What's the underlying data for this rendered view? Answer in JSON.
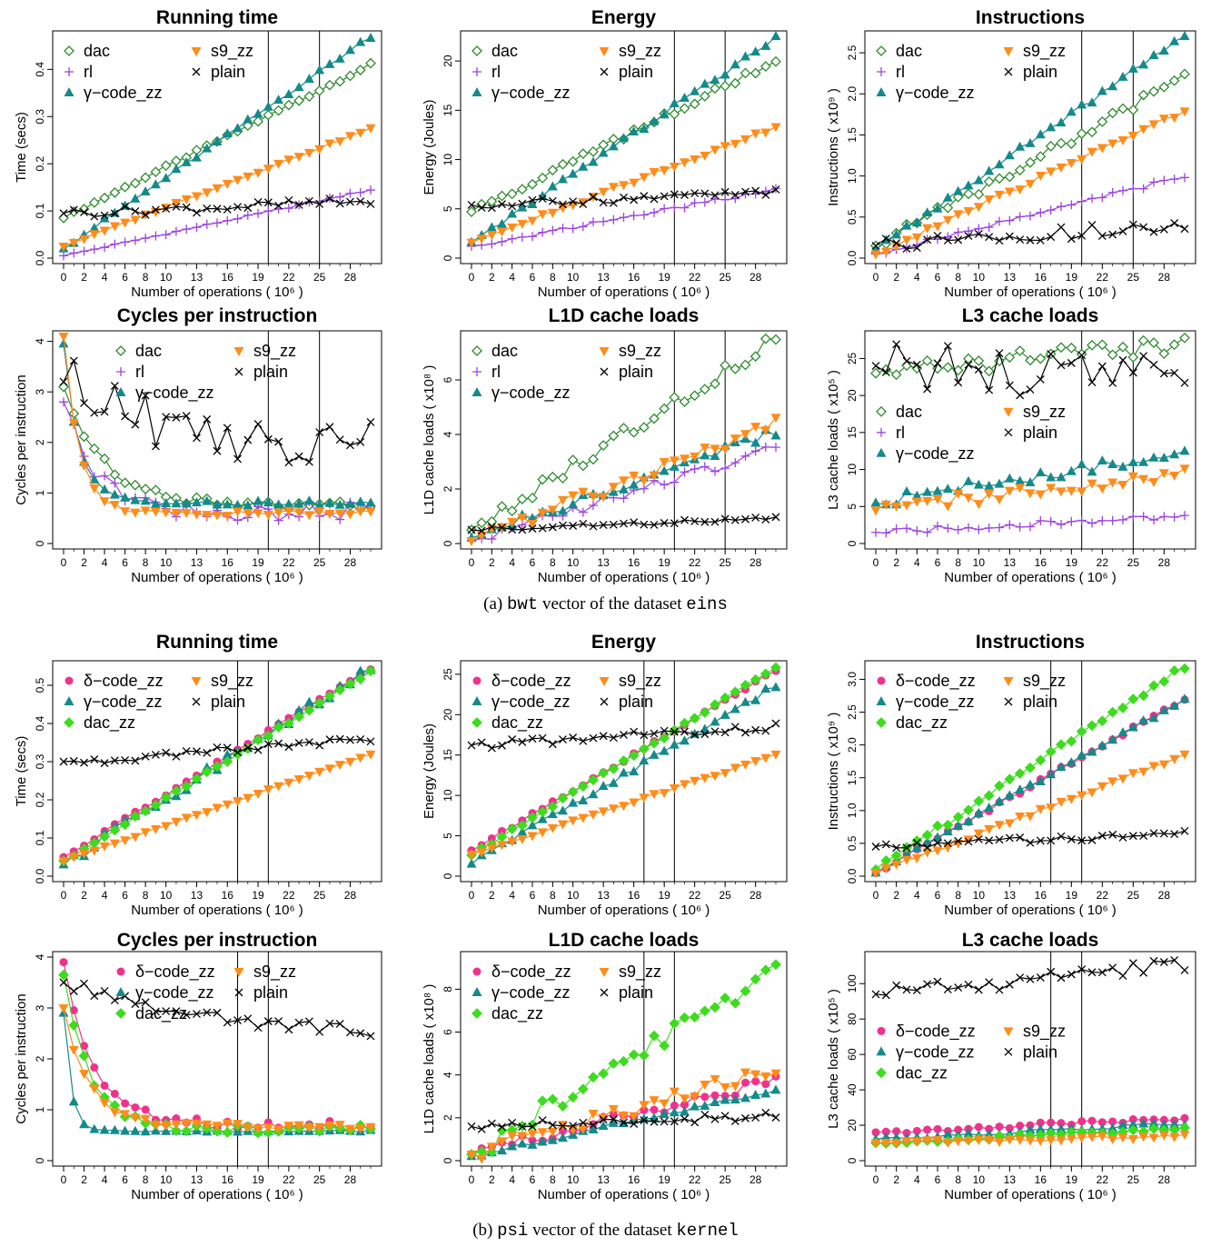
{
  "figure": {
    "caption_a": {
      "prefix": "(a)",
      "vector": "bwt",
      "middle": "vector of the dataset",
      "dataset": "eins"
    },
    "caption_b": {
      "prefix": "(b)",
      "vector": "psi",
      "middle": "vector of the dataset",
      "dataset": "kernel"
    }
  },
  "series_styles": {
    "dac": {
      "color": "#2e8b2e",
      "marker": "diamond-open"
    },
    "rl": {
      "color": "#9d44e0",
      "marker": "plus"
    },
    "γ−code_zz": {
      "color": "#158a8a",
      "marker": "triangle-up"
    },
    "s9_zz": {
      "color": "#ff8c1a",
      "marker": "triangle-down"
    },
    "plain": {
      "color": "#000000",
      "marker": "x"
    },
    "δ−code_zz": {
      "color": "#f0328c",
      "marker": "circle"
    },
    "dac_zz": {
      "color": "#3ddc1e",
      "marker": "diamond"
    }
  },
  "chart_data": [
    {
      "panel": "a",
      "type": "line",
      "title": "Running time",
      "xlabel": "Number of operations ( 10⁶ )",
      "ylabel": "Time (secs)",
      "xticks": [
        0,
        2,
        4,
        6,
        8,
        10,
        13,
        16,
        19,
        22,
        25,
        28
      ],
      "ylim": [
        0,
        0.47
      ],
      "yticks": [
        "0.0",
        "0.1",
        "0.2",
        "0.3",
        "0.4"
      ],
      "ytick_values": [
        0,
        0.1,
        0.2,
        0.3,
        0.4
      ],
      "vlines": [
        20,
        25
      ],
      "legend": {
        "position": "top-left",
        "col2": "center",
        "order": [
          "dac",
          "s9_zz",
          "rl",
          "plain",
          "γ−code_zz"
        ]
      },
      "series": [
        {
          "name": "dac",
          "y0": 0.085,
          "y1": 0.41,
          "noise": 0.003
        },
        {
          "name": "rl",
          "y0": 0.005,
          "y1": 0.145,
          "noise": 0.002
        },
        {
          "name": "γ−code_zz",
          "y0": 0.02,
          "y1": 0.47,
          "noise": 0.004
        },
        {
          "name": "s9_zz",
          "y0": 0.025,
          "y1": 0.275,
          "noise": 0.002
        },
        {
          "name": "plain",
          "y0": 0.095,
          "y1": 0.12,
          "noise": 0.01
        }
      ]
    },
    {
      "panel": "a",
      "type": "line",
      "title": "Energy",
      "xlabel": "Number of operations ( 10⁶ )",
      "ylabel": "Energy (Joules)",
      "xticks": [
        0,
        2,
        4,
        6,
        8,
        10,
        13,
        16,
        19,
        22,
        25,
        28
      ],
      "ylim": [
        0,
        22.5
      ],
      "yticks": [
        "0",
        "5",
        "10",
        "15",
        "20"
      ],
      "ytick_values": [
        0,
        5,
        10,
        15,
        20
      ],
      "vlines": [
        20,
        25
      ],
      "legend": {
        "position": "top-left",
        "col2": "center",
        "order": [
          "dac",
          "s9_zz",
          "rl",
          "plain",
          "γ−code_zz"
        ]
      },
      "series": [
        {
          "name": "dac",
          "y0": 4.7,
          "y1": 20,
          "noise": 0.3
        },
        {
          "name": "rl",
          "y0": 1.2,
          "y1": 7.0,
          "noise": 0.2
        },
        {
          "name": "γ−code_zz",
          "y0": 1.6,
          "y1": 22.3,
          "noise": 0.3
        },
        {
          "name": "s9_zz",
          "y0": 1.6,
          "y1": 13.3,
          "noise": 0.2
        },
        {
          "name": "plain",
          "y0": 5.4,
          "y1": 6.6,
          "noise": 0.4
        }
      ]
    },
    {
      "panel": "a",
      "type": "line",
      "title": "Instructions",
      "xlabel": "Number of operations ( 10⁶ )",
      "ylabel": "Instructions ( x10⁹ )",
      "xticks": [
        0,
        2,
        4,
        6,
        8,
        10,
        13,
        16,
        19,
        22,
        25,
        28
      ],
      "ylim": [
        0,
        2.7
      ],
      "yticks": [
        "0.0",
        "0.5",
        "1.0",
        "1.5",
        "2.0",
        "2.5"
      ],
      "ytick_values": [
        0,
        0.5,
        1,
        1.5,
        2,
        2.5
      ],
      "vlines": [
        20,
        25
      ],
      "legend": {
        "position": "top-left",
        "col2": "center",
        "order": [
          "dac",
          "s9_zz",
          "rl",
          "plain",
          "γ−code_zz"
        ]
      },
      "series": [
        {
          "name": "dac",
          "y0": 0.15,
          "y1": 2.2,
          "noise": 0.06
        },
        {
          "name": "rl",
          "y0": 0.05,
          "y1": 1.0,
          "noise": 0.03
        },
        {
          "name": "γ−code_zz",
          "y0": 0.1,
          "y1": 2.7,
          "noise": 0.04
        },
        {
          "name": "s9_zz",
          "y0": 0.05,
          "y1": 1.8,
          "noise": 0.03
        },
        {
          "name": "plain",
          "y0": 0.15,
          "y1": 0.4,
          "noise": 0.08
        }
      ]
    },
    {
      "panel": "a",
      "type": "line",
      "title": "Cycles per instruction",
      "xlabel": "Number of operations ( 10⁶ )",
      "ylabel": "Cycles per instruction",
      "xticks": [
        0,
        2,
        4,
        6,
        8,
        10,
        13,
        16,
        19,
        22,
        25,
        28
      ],
      "ylim": [
        0,
        4.1
      ],
      "yticks": [
        "0",
        "1",
        "2",
        "3",
        "4"
      ],
      "ytick_values": [
        0,
        1,
        2,
        3,
        4
      ],
      "vlines": [
        20,
        25
      ],
      "legend": {
        "position": "top-center",
        "col2": "right",
        "order": [
          "dac",
          "s9_zz",
          "rl",
          "plain",
          "γ−code_zz"
        ]
      },
      "series": [
        {
          "name": "dac",
          "y0": 3.1,
          "y1": 0.75,
          "noise": 0.08,
          "decay": 4
        },
        {
          "name": "rl",
          "y0": 2.8,
          "y1": 0.65,
          "noise": 0.2,
          "decay": 3
        },
        {
          "name": "γ−code_zz",
          "y0": 3.95,
          "y1": 0.8,
          "noise": 0.05,
          "decay": 1.5
        },
        {
          "name": "s9_zz",
          "y0": 4.1,
          "y1": 0.6,
          "noise": 0.05,
          "decay": 1.5
        },
        {
          "name": "plain",
          "y0": 3.2,
          "y1": 1.8,
          "noise": 0.55,
          "decay": 10
        }
      ]
    },
    {
      "panel": "a",
      "type": "line",
      "title": "L1D cache loads",
      "xlabel": "Number of operations ( 10⁶ )",
      "ylabel": "L1D cache loads ( x10⁸ )",
      "xticks": [
        0,
        2,
        4,
        6,
        8,
        10,
        13,
        16,
        19,
        22,
        25,
        28
      ],
      "ylim": [
        0,
        7.6
      ],
      "yticks": [
        "0",
        "2",
        "4",
        "6"
      ],
      "ytick_values": [
        0,
        2,
        4,
        6
      ],
      "vlines": [
        20,
        25
      ],
      "legend": {
        "position": "top-left",
        "col2": "center",
        "order": [
          "dac",
          "s9_zz",
          "rl",
          "plain",
          "γ−code_zz"
        ]
      },
      "series": [
        {
          "name": "dac",
          "y0": 0.5,
          "y1": 7.5,
          "noise": 0.25
        },
        {
          "name": "rl",
          "y0": 0.1,
          "y1": 3.5,
          "noise": 0.2
        },
        {
          "name": "γ−code_zz",
          "y0": 0.2,
          "y1": 4.1,
          "noise": 0.2
        },
        {
          "name": "s9_zz",
          "y0": 0.1,
          "y1": 4.4,
          "noise": 0.25
        },
        {
          "name": "plain",
          "y0": 0.5,
          "y1": 0.9,
          "noise": 0.1
        }
      ]
    },
    {
      "panel": "a",
      "type": "line",
      "title": "L3 cache loads",
      "xlabel": "Number of operations ( 10⁶ )",
      "ylabel": "L3 cache loads ( x10⁵ )",
      "xticks": [
        0,
        2,
        4,
        6,
        8,
        10,
        13,
        16,
        19,
        22,
        25,
        28
      ],
      "ylim": [
        0,
        28
      ],
      "yticks": [
        "0",
        "5",
        "10",
        "15",
        "20",
        "25"
      ],
      "ytick_values": [
        0,
        5,
        10,
        15,
        20,
        25
      ],
      "vlines": [
        20,
        25
      ],
      "legend": {
        "position": "middle-left",
        "col2": "center",
        "order": [
          "dac",
          "s9_zz",
          "rl",
          "plain",
          "γ−code_zz"
        ]
      },
      "series": [
        {
          "name": "dac",
          "y0": 23,
          "y1": 27,
          "noise": 1.2
        },
        {
          "name": "rl",
          "y0": 1.5,
          "y1": 3.8,
          "noise": 0.4
        },
        {
          "name": "γ−code_zz",
          "y0": 5.5,
          "y1": 12.5,
          "noise": 0.8
        },
        {
          "name": "s9_zz",
          "y0": 4.5,
          "y1": 9.7,
          "noise": 0.9
        },
        {
          "name": "plain",
          "y0": 24,
          "y1": 22,
          "noise": 3.2
        }
      ]
    },
    {
      "panel": "b",
      "type": "line",
      "title": "Running time",
      "xlabel": "Number of operations ( 10⁶ )",
      "ylabel": "Time (secs)",
      "xticks": [
        0,
        2,
        4,
        6,
        8,
        10,
        13,
        16,
        19,
        22,
        25,
        28
      ],
      "ylim": [
        0,
        0.55
      ],
      "yticks": [
        "0.0",
        "0.1",
        "0.2",
        "0.3",
        "0.4",
        "0.5"
      ],
      "ytick_values": [
        0,
        0.1,
        0.2,
        0.3,
        0.4,
        0.5
      ],
      "vlines": [
        17,
        20
      ],
      "legend": {
        "position": "top-left",
        "col2": "center",
        "order": [
          "δ−code_zz",
          "s9_zz",
          "γ−code_zz",
          "plain",
          "dac_zz"
        ]
      },
      "series": [
        {
          "name": "δ−code_zz",
          "y0": 0.05,
          "y1": 0.545,
          "noise": 0.004
        },
        {
          "name": "γ−code_zz",
          "y0": 0.03,
          "y1": 0.545,
          "noise": 0.015
        },
        {
          "name": "dac_zz",
          "y0": 0.04,
          "y1": 0.535,
          "noise": 0.004
        },
        {
          "name": "s9_zz",
          "y0": 0.04,
          "y1": 0.32,
          "noise": 0.002
        },
        {
          "name": "plain",
          "y0": 0.3,
          "y1": 0.355,
          "noise": 0.012
        }
      ]
    },
    {
      "panel": "b",
      "type": "line",
      "title": "Energy",
      "xlabel": "Number of operations ( 10⁶ )",
      "ylabel": "Energy (Joules)",
      "xticks": [
        0,
        2,
        4,
        6,
        8,
        10,
        13,
        16,
        19,
        22,
        25,
        28
      ],
      "ylim": [
        0,
        26
      ],
      "yticks": [
        "0",
        "5",
        "10",
        "15",
        "20",
        "25"
      ],
      "ytick_values": [
        0,
        5,
        10,
        15,
        20,
        25
      ],
      "vlines": [
        17,
        20
      ],
      "legend": {
        "position": "top-left",
        "col2": "center",
        "order": [
          "δ−code_zz",
          "s9_zz",
          "γ−code_zz",
          "plain",
          "dac_zz"
        ]
      },
      "series": [
        {
          "name": "δ−code_zz",
          "y0": 3.2,
          "y1": 25.4,
          "noise": 0.2
        },
        {
          "name": "γ−code_zz",
          "y0": 1.5,
          "y1": 23.6,
          "noise": 0.4
        },
        {
          "name": "dac_zz",
          "y0": 2.6,
          "y1": 25.8,
          "noise": 0.2
        },
        {
          "name": "s9_zz",
          "y0": 2.7,
          "y1": 15.0,
          "noise": 0.15
        },
        {
          "name": "plain",
          "y0": 16.2,
          "y1": 18.5,
          "noise": 0.5
        }
      ]
    },
    {
      "panel": "b",
      "type": "line",
      "title": "Instructions",
      "xlabel": "Number of operations ( 10⁶ )",
      "ylabel": "Instructions ( x10⁹ )",
      "xticks": [
        0,
        2,
        4,
        6,
        8,
        10,
        13,
        16,
        19,
        22,
        25,
        28
      ],
      "ylim": [
        0,
        3.2
      ],
      "yticks": [
        "0.0",
        "0.5",
        "1.0",
        "1.5",
        "2.0",
        "2.5",
        "3.0"
      ],
      "ytick_values": [
        0,
        0.5,
        1,
        1.5,
        2,
        2.5,
        3
      ],
      "vlines": [
        17,
        20
      ],
      "legend": {
        "position": "top-left",
        "col2": "center",
        "order": [
          "δ−code_zz",
          "s9_zz",
          "γ−code_zz",
          "plain",
          "dac_zz"
        ]
      },
      "series": [
        {
          "name": "δ−code_zz",
          "y0": 0.05,
          "y1": 2.7,
          "noise": 0.03
        },
        {
          "name": "γ−code_zz",
          "y0": 0.05,
          "y1": 2.7,
          "noise": 0.03
        },
        {
          "name": "dac_zz",
          "y0": 0.1,
          "y1": 3.2,
          "noise": 0.05
        },
        {
          "name": "s9_zz",
          "y0": 0.05,
          "y1": 1.85,
          "noise": 0.03
        },
        {
          "name": "plain",
          "y0": 0.45,
          "y1": 0.65,
          "noise": 0.05
        }
      ]
    },
    {
      "panel": "b",
      "type": "line",
      "title": "Cycles per instruction",
      "xlabel": "Number of operations ( 10⁶ )",
      "ylabel": "Cycles per instruction",
      "xticks": [
        0,
        2,
        4,
        6,
        8,
        10,
        13,
        16,
        19,
        22,
        25,
        28
      ],
      "ylim": [
        0,
        4
      ],
      "yticks": [
        "0",
        "1",
        "2",
        "3",
        "4"
      ],
      "ytick_values": [
        0,
        1,
        2,
        3,
        4
      ],
      "vlines": [
        17,
        20
      ],
      "legend": {
        "position": "top-center",
        "col2": "right",
        "order": [
          "δ−code_zz",
          "s9_zz",
          "γ−code_zz",
          "plain",
          "dac_zz"
        ]
      },
      "series": [
        {
          "name": "δ−code_zz",
          "y0": 3.9,
          "y1": 0.7,
          "noise": 0.1,
          "decay": 3
        },
        {
          "name": "γ−code_zz",
          "y0": 2.9,
          "y1": 0.58,
          "noise": 0.02,
          "decay": 0.7
        },
        {
          "name": "dac_zz",
          "y0": 3.65,
          "y1": 0.62,
          "noise": 0.08,
          "decay": 2.5
        },
        {
          "name": "s9_zz",
          "y0": 3.0,
          "y1": 0.68,
          "noise": 0.06,
          "decay": 2.5
        },
        {
          "name": "plain",
          "y0": 3.5,
          "y1": 2.4,
          "noise": 0.12,
          "decay": 15
        }
      ]
    },
    {
      "panel": "b",
      "type": "line",
      "title": "L1D cache loads",
      "xlabel": "Number of operations ( 10⁶ )",
      "ylabel": "L1D cache loads ( x10⁸ )",
      "xticks": [
        0,
        2,
        4,
        6,
        8,
        10,
        13,
        16,
        19,
        22,
        25,
        28
      ],
      "ylim": [
        0,
        9.5
      ],
      "yticks": [
        "0",
        "2",
        "4",
        "6",
        "8"
      ],
      "ytick_values": [
        0,
        2,
        4,
        6,
        8
      ],
      "vlines": [
        17,
        20
      ],
      "legend": {
        "position": "top-left",
        "col2": "center",
        "order": [
          "δ−code_zz",
          "s9_zz",
          "γ−code_zz",
          "plain",
          "dac_zz"
        ]
      },
      "series": [
        {
          "name": "δ−code_zz",
          "y0": 0.3,
          "y1": 3.8,
          "noise": 0.3
        },
        {
          "name": "γ−code_zz",
          "y0": 0.2,
          "y1": 3.3,
          "noise": 0.1
        },
        {
          "name": "dac_zz",
          "y0": 0.3,
          "y1": 9.0,
          "noise": 0.5
        },
        {
          "name": "s9_zz",
          "y0": 0.3,
          "y1": 4.3,
          "noise": 0.35
        },
        {
          "name": "plain",
          "y0": 1.6,
          "y1": 2.1,
          "noise": 0.2
        }
      ]
    },
    {
      "panel": "b",
      "type": "line",
      "title": "L3 cache loads",
      "xlabel": "Number of operations ( 10⁶ )",
      "ylabel": "L3 cache loads ( x10⁵ )",
      "xticks": [
        0,
        2,
        4,
        6,
        8,
        10,
        13,
        16,
        19,
        22,
        25,
        28
      ],
      "ylim": [
        0,
        115
      ],
      "yticks": [
        "0",
        "20",
        "40",
        "60",
        "80",
        "100"
      ],
      "ytick_values": [
        0,
        20,
        40,
        60,
        80,
        100
      ],
      "vlines": [
        17,
        20
      ],
      "legend": {
        "position": "middle-left",
        "col2": "center",
        "order": [
          "δ−code_zz",
          "s9_zz",
          "γ−code_zz",
          "plain",
          "dac_zz"
        ]
      },
      "series": [
        {
          "name": "δ−code_zz",
          "y0": 16,
          "y1": 24,
          "noise": 1.2
        },
        {
          "name": "γ−code_zz",
          "y0": 12,
          "y1": 21,
          "noise": 1.0
        },
        {
          "name": "dac_zz",
          "y0": 10,
          "y1": 18,
          "noise": 1.0
        },
        {
          "name": "s9_zz",
          "y0": 10,
          "y1": 14,
          "noise": 1.0
        },
        {
          "name": "plain",
          "y0": 94,
          "y1": 110,
          "noise": 4.5
        }
      ]
    }
  ]
}
